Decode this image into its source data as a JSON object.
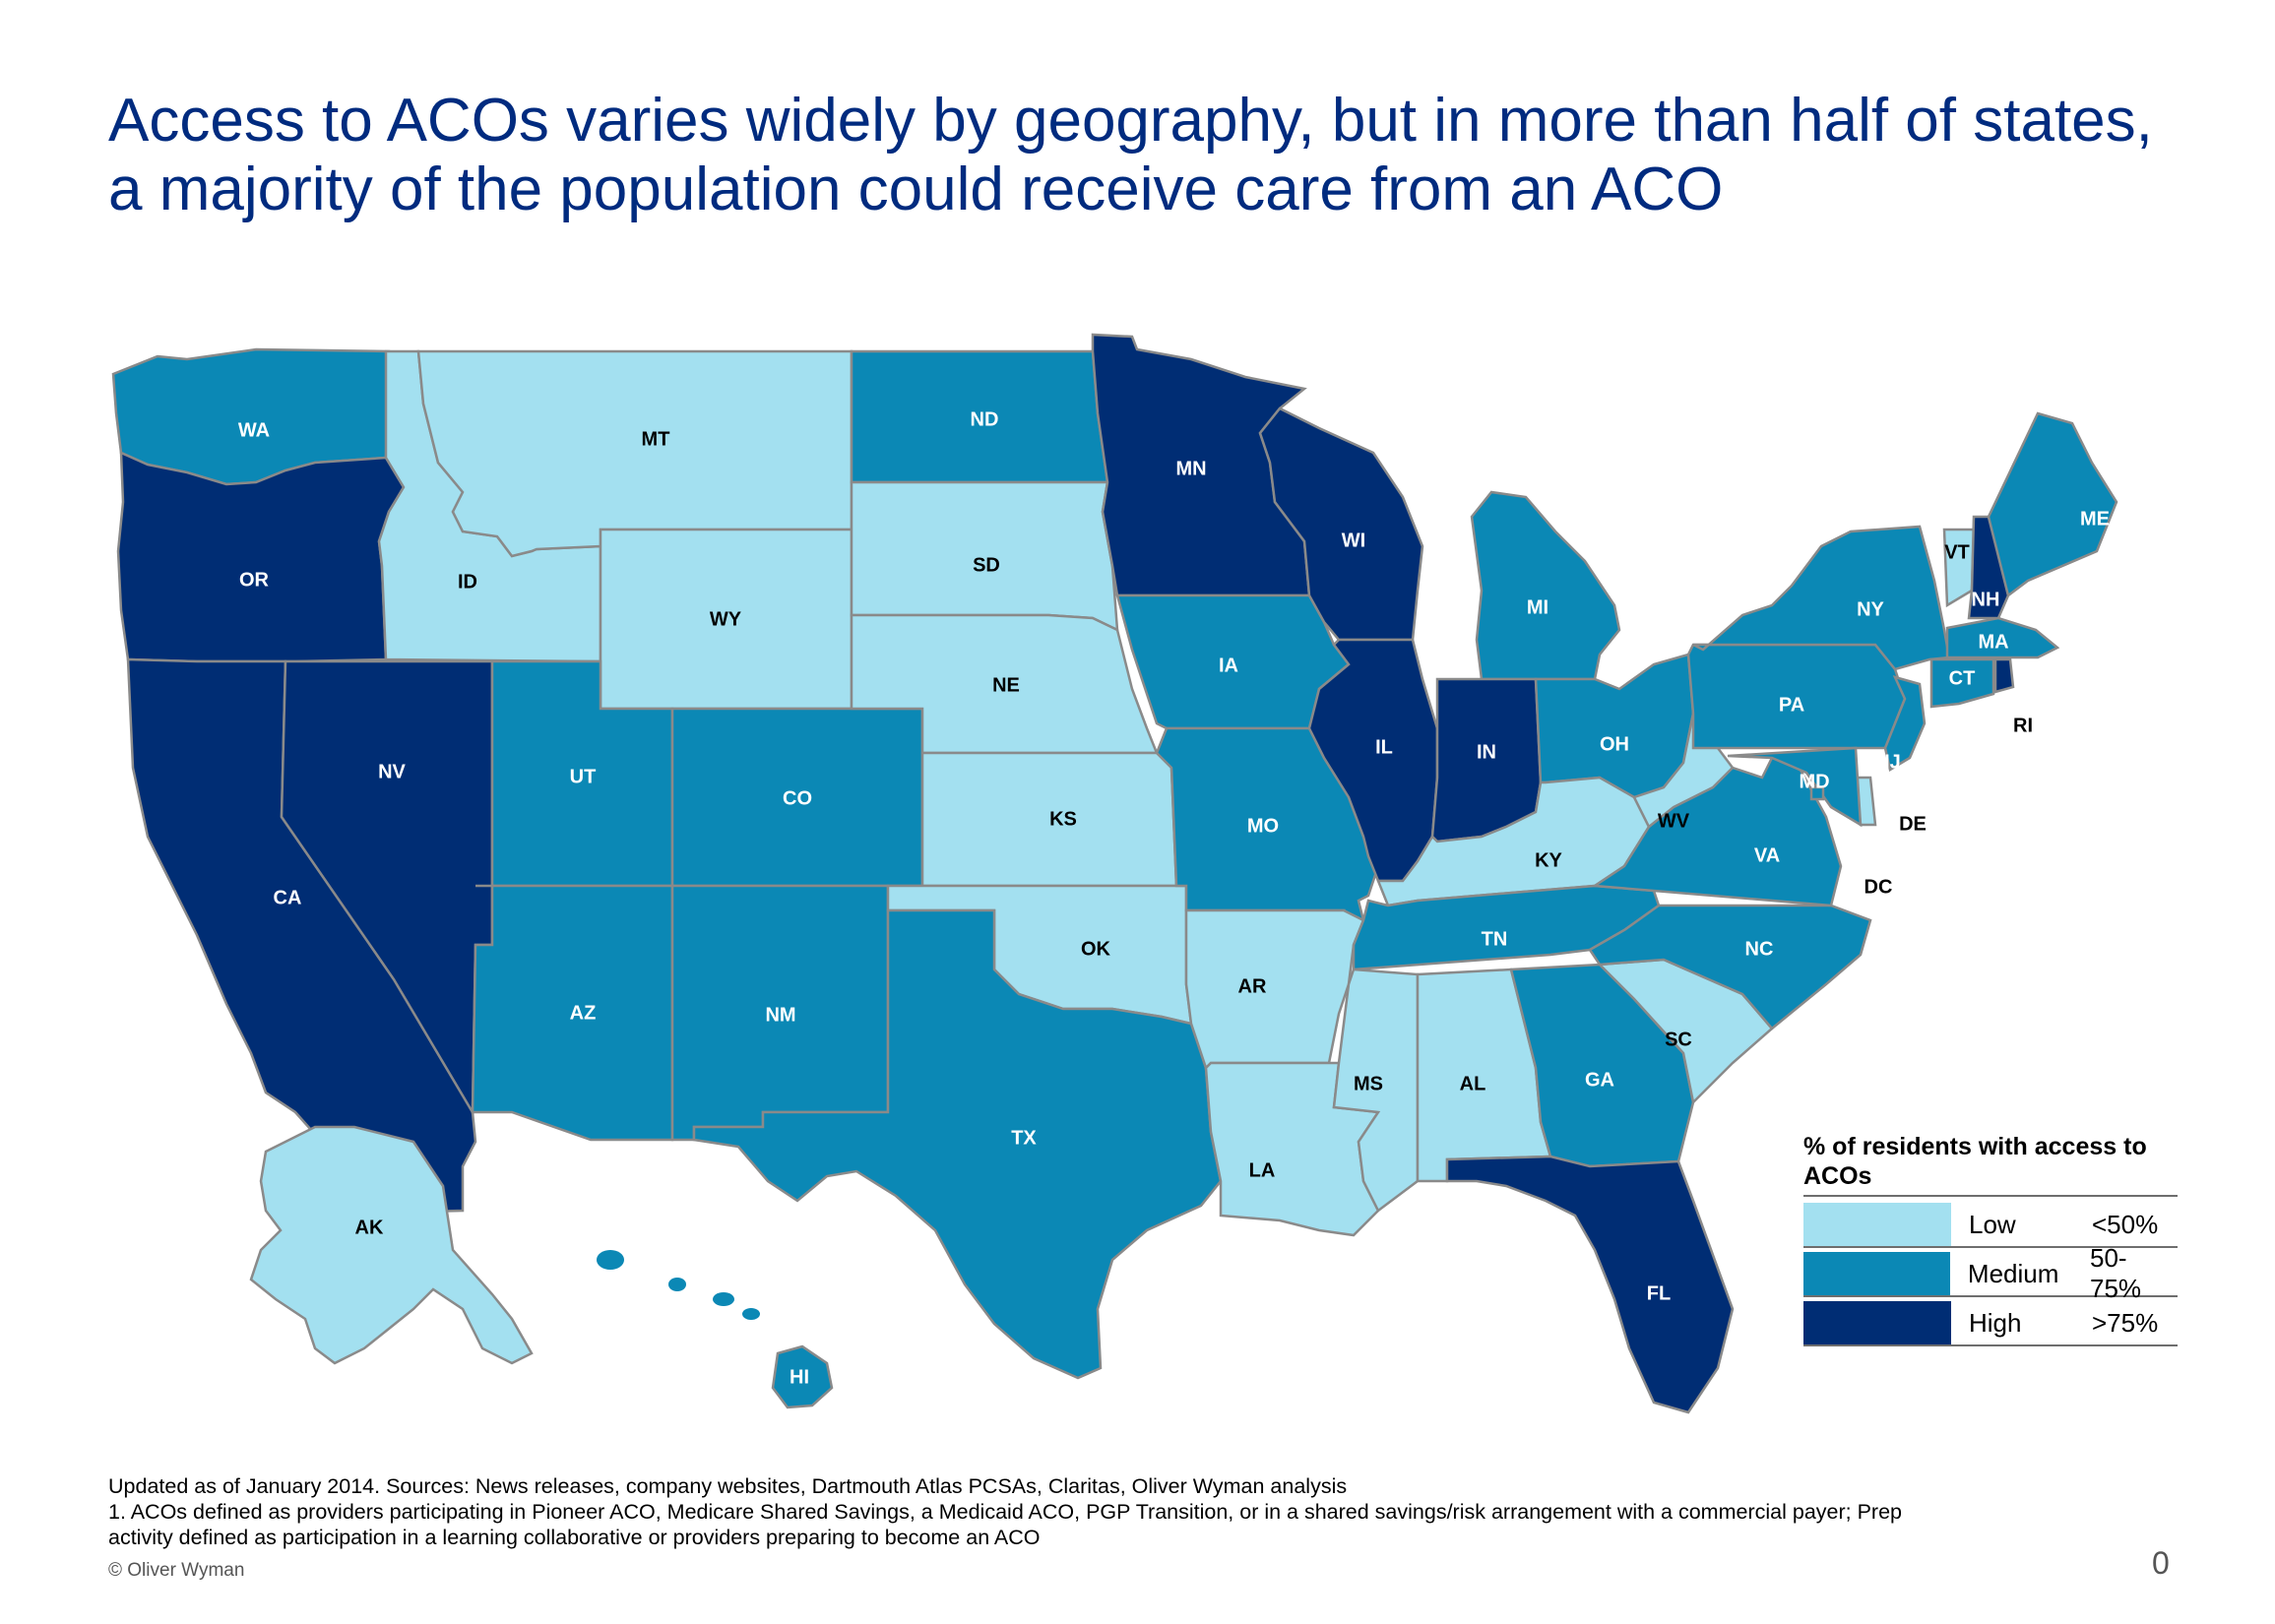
{
  "title": {
    "line1": "Access to ACOs varies widely by geography, but in more than half of states,",
    "line2": "a majority of the population could receive care from an ACO"
  },
  "colors": {
    "low": "#a3e0f0",
    "medium": "#0b88b5",
    "high": "#002d74",
    "border": "#8a8a8a"
  },
  "legend": {
    "title": "% of residents with access to ACOs",
    "items": [
      {
        "key": "low",
        "label": "Low",
        "range": "<50%"
      },
      {
        "key": "medium",
        "label": "Medium",
        "range": "50-75%"
      },
      {
        "key": "high",
        "label": "High",
        "range": ">75%"
      }
    ]
  },
  "states": [
    {
      "code": "WA",
      "level": "medium"
    },
    {
      "code": "OR",
      "level": "high"
    },
    {
      "code": "CA",
      "level": "high"
    },
    {
      "code": "NV",
      "level": "high"
    },
    {
      "code": "ID",
      "level": "low"
    },
    {
      "code": "MT",
      "level": "low"
    },
    {
      "code": "WY",
      "level": "low"
    },
    {
      "code": "UT",
      "level": "medium"
    },
    {
      "code": "CO",
      "level": "medium"
    },
    {
      "code": "AZ",
      "level": "medium"
    },
    {
      "code": "NM",
      "level": "medium"
    },
    {
      "code": "ND",
      "level": "medium"
    },
    {
      "code": "SD",
      "level": "low"
    },
    {
      "code": "NE",
      "level": "low"
    },
    {
      "code": "KS",
      "level": "low"
    },
    {
      "code": "OK",
      "level": "low"
    },
    {
      "code": "TX",
      "level": "medium"
    },
    {
      "code": "MN",
      "level": "high"
    },
    {
      "code": "IA",
      "level": "medium"
    },
    {
      "code": "MO",
      "level": "medium"
    },
    {
      "code": "AR",
      "level": "low"
    },
    {
      "code": "LA",
      "level": "low"
    },
    {
      "code": "WI",
      "level": "high"
    },
    {
      "code": "IL",
      "level": "high"
    },
    {
      "code": "MI",
      "level": "medium"
    },
    {
      "code": "IN",
      "level": "high"
    },
    {
      "code": "OH",
      "level": "medium"
    },
    {
      "code": "KY",
      "level": "low"
    },
    {
      "code": "TN",
      "level": "medium"
    },
    {
      "code": "MS",
      "level": "low"
    },
    {
      "code": "AL",
      "level": "low"
    },
    {
      "code": "GA",
      "level": "medium"
    },
    {
      "code": "FL",
      "level": "high"
    },
    {
      "code": "SC",
      "level": "low"
    },
    {
      "code": "NC",
      "level": "medium"
    },
    {
      "code": "VA",
      "level": "medium"
    },
    {
      "code": "WV",
      "level": "low"
    },
    {
      "code": "PA",
      "level": "medium"
    },
    {
      "code": "NY",
      "level": "medium"
    },
    {
      "code": "VT",
      "level": "low"
    },
    {
      "code": "NH",
      "level": "high"
    },
    {
      "code": "ME",
      "level": "medium"
    },
    {
      "code": "MA",
      "level": "medium"
    },
    {
      "code": "CT",
      "level": "medium"
    },
    {
      "code": "RI",
      "level": "high"
    },
    {
      "code": "NJ",
      "level": "medium"
    },
    {
      "code": "DE",
      "level": "low"
    },
    {
      "code": "MD",
      "level": "medium"
    },
    {
      "code": "DC",
      "level": "medium"
    },
    {
      "code": "AK",
      "level": "low"
    },
    {
      "code": "HI",
      "level": "medium"
    }
  ],
  "footnotes": {
    "line1": "Updated as of January 2014. Sources: News releases, company websites, Dartmouth Atlas PCSAs, Claritas, Oliver Wyman analysis",
    "line2": "1. ACOs defined as providers participating in Pioneer ACO, Medicare Shared Savings, a Medicaid ACO, PGP Transition, or in a shared savings/risk arrangement with a commercial payer; Prep",
    "line3": "activity defined as participation in a learning collaborative or providers preparing to become an ACO"
  },
  "copyright": "© Oliver Wyman",
  "page_number": "0"
}
